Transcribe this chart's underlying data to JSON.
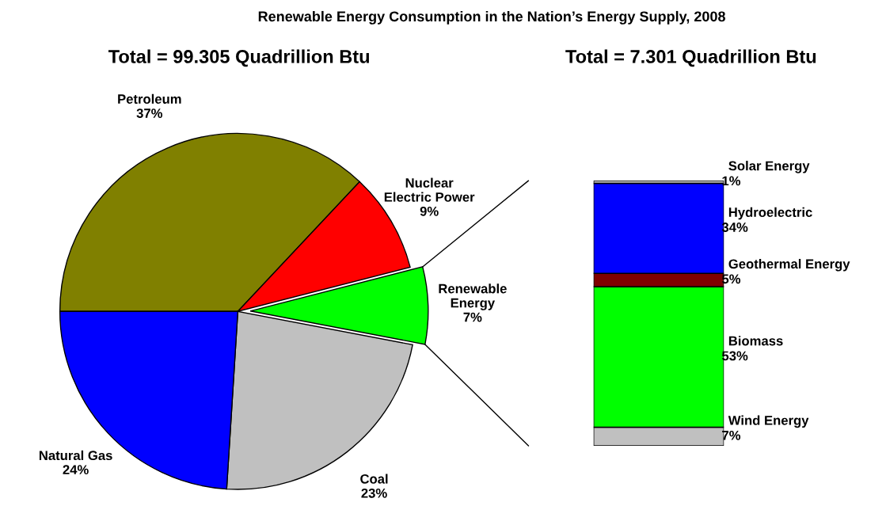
{
  "chart_data": [
    {
      "type": "pie",
      "title": "Renewable Energy Consumption in the Nation’s Energy Supply, 2008",
      "subtitle": "Total = 99.305 Quadrillion Btu",
      "categories": [
        "Petroleum",
        "Nuclear\nElectric Power",
        "Renewable\nEnergy",
        "Coal",
        "Natural Gas"
      ],
      "values": [
        37,
        9,
        7,
        23,
        24
      ],
      "value_labels": [
        "37%",
        "9%",
        "7%",
        "23%",
        "24%"
      ],
      "colors": [
        "#808000",
        "#ff0000",
        "#00ff00",
        "#c0c0c0",
        "#0000ff"
      ]
    },
    {
      "type": "bar",
      "stacked": true,
      "subtitle": "Total = 7.301 Quadrillion Btu",
      "categories": [
        null
      ],
      "series": [
        {
          "name": "Wind Energy",
          "color": "#c0c0c0",
          "values": [
            7
          ],
          "value_labels": [
            "7%"
          ]
        },
        {
          "name": "Biomass",
          "color": "#00ff00",
          "values": [
            53
          ],
          "value_labels": [
            "53%"
          ]
        },
        {
          "name": "Geothermal Energy",
          "color": "#800000",
          "values": [
            5
          ],
          "value_labels": [
            "5%"
          ]
        },
        {
          "name": "Hydroelectric",
          "color": "#0000ff",
          "values": [
            34
          ],
          "value_labels": [
            "34%"
          ]
        },
        {
          "name": "Solar Energy",
          "color": "#c0c0c0",
          "values": [
            1
          ],
          "value_labels": [
            "1%"
          ]
        }
      ]
    }
  ]
}
